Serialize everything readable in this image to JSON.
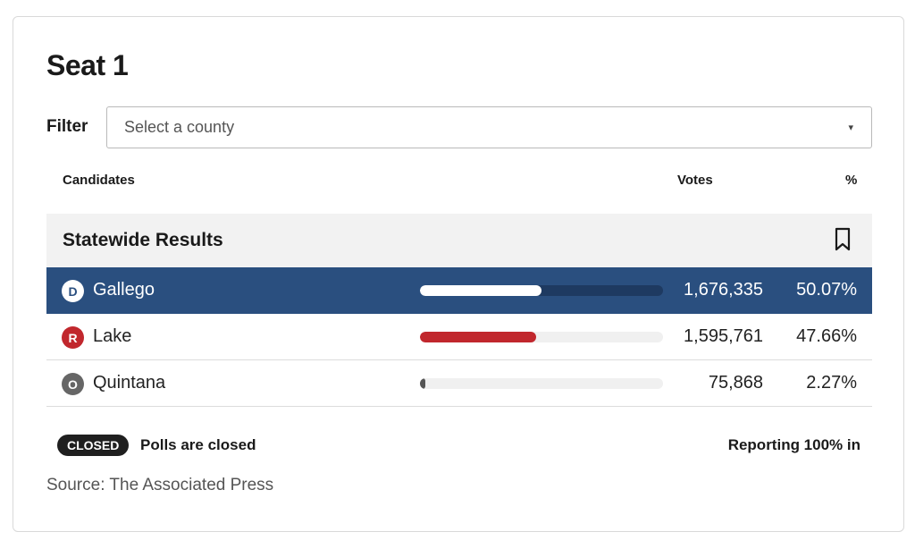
{
  "title": "Seat 1",
  "filter": {
    "label": "Filter",
    "placeholder": "Select a county",
    "caret": "▾"
  },
  "columns": {
    "candidates": "Candidates",
    "votes": "Votes",
    "percent": "%"
  },
  "section": {
    "title": "Statewide Results"
  },
  "candidates": [
    {
      "party_letter": "D",
      "name": "Gallego",
      "votes": "1,676,335",
      "percent": "50.07%",
      "share": 0.5007,
      "party_color": "#ffffff",
      "bar_color": "#ffffff"
    },
    {
      "party_letter": "R",
      "name": "Lake",
      "votes": "1,595,761",
      "percent": "47.66%",
      "share": 0.4766,
      "party_color": "#c1272d",
      "bar_color": "#c1272d"
    },
    {
      "party_letter": "O",
      "name": "Quintana",
      "votes": "75,868",
      "percent": "2.27%",
      "share": 0.0227,
      "party_color": "#666666",
      "bar_color": "#555555"
    }
  ],
  "status": {
    "badge": "CLOSED",
    "text": "Polls are closed",
    "reporting": "Reporting 100% in"
  },
  "source": "Source: The Associated Press",
  "colors": {
    "leader_row": "#2a4f7f",
    "section_bg": "#f2f2f2",
    "badge_bg": "#1f1f1f"
  }
}
